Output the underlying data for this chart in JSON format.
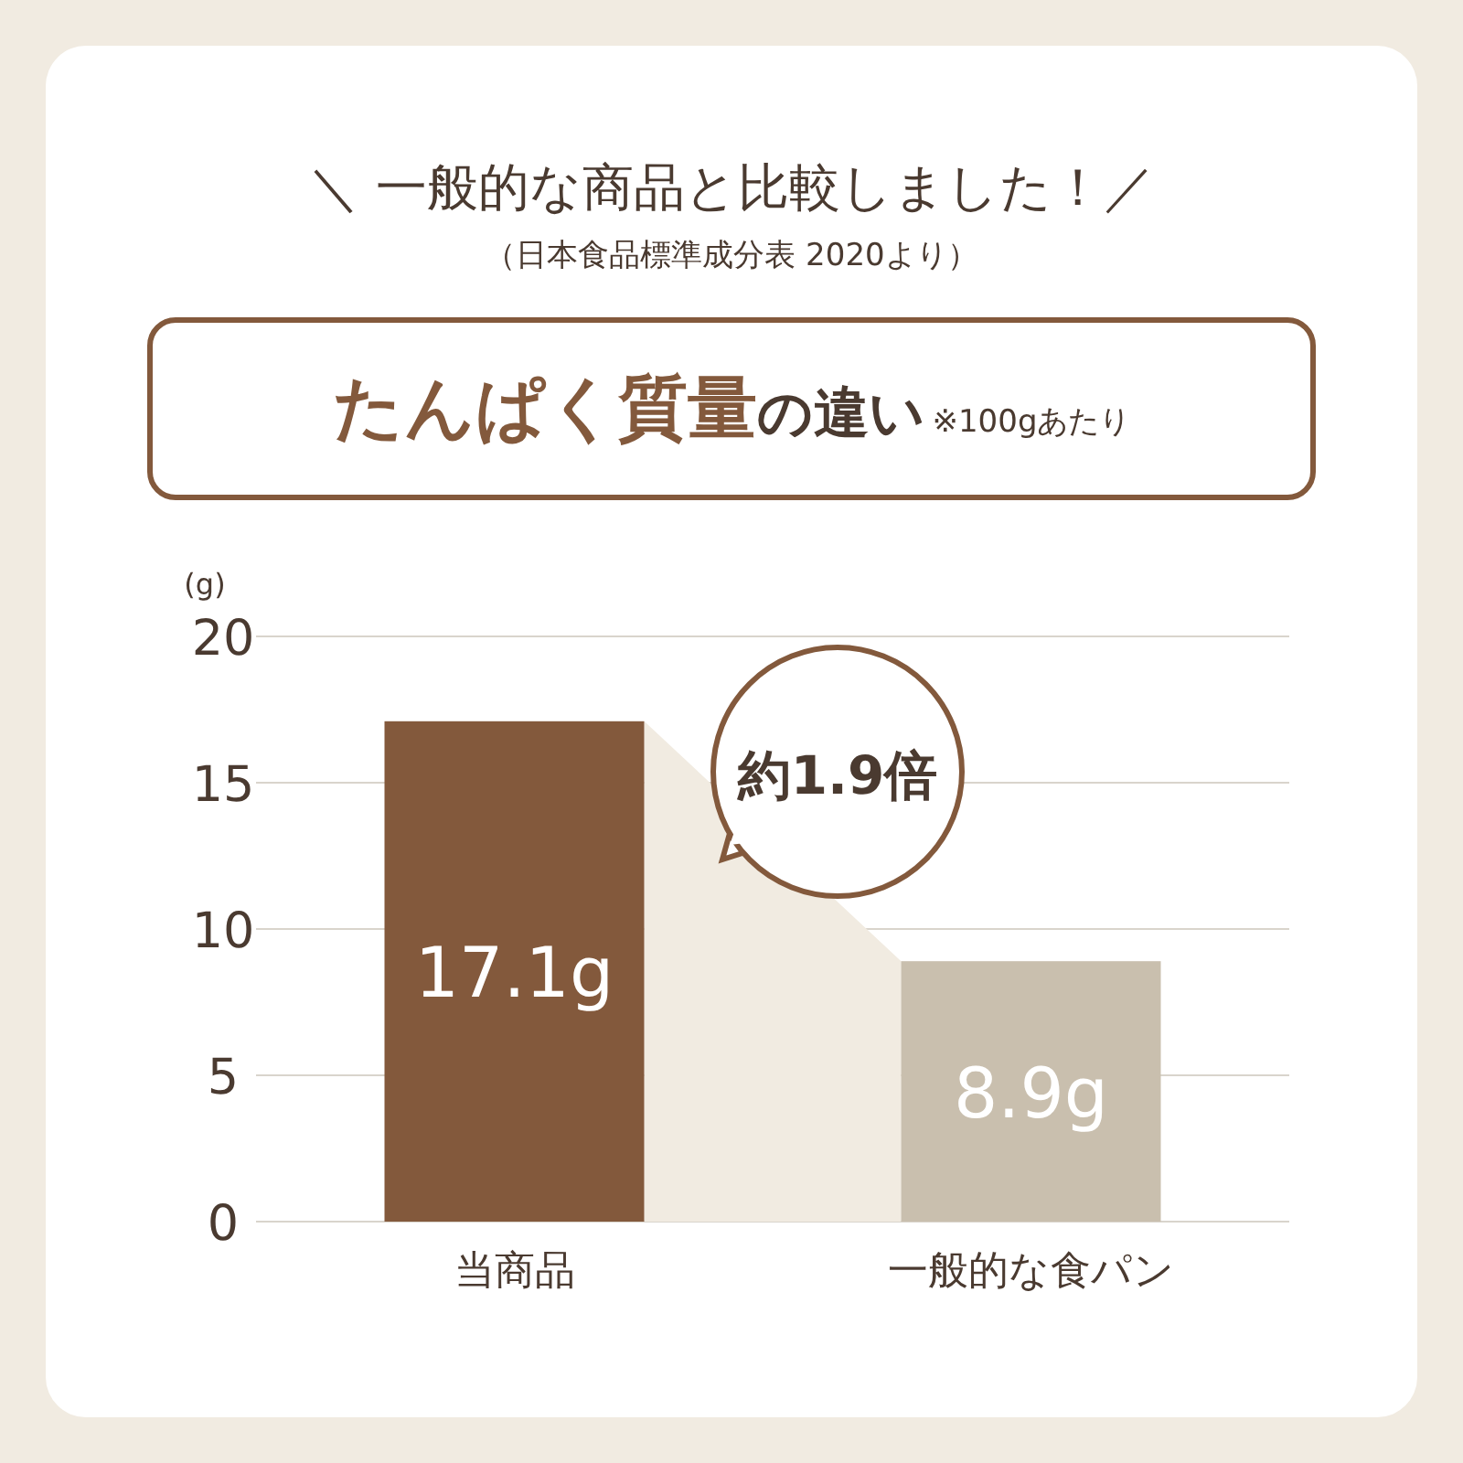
{
  "chart_data": {
    "type": "bar",
    "title": "＼ 一般的な商品と比較しました！／",
    "subtitle": "（日本食品標準成分表 2020より）",
    "ylabel": "(g)",
    "categories": [
      "当商品",
      "一般的な食パン"
    ],
    "values": [
      17.1,
      8.9
    ],
    "colors": [
      "#83593c",
      "#c9bfae"
    ],
    "value_labels": [
      "17.1g",
      "8.9g"
    ],
    "ylim": [
      0,
      20
    ],
    "yticks": [
      0,
      5,
      10,
      15,
      20
    ],
    "grid": "y",
    "annotations": [
      "たんぱく質量",
      "の違い",
      "※100gあたり",
      "約1.9倍"
    ]
  }
}
